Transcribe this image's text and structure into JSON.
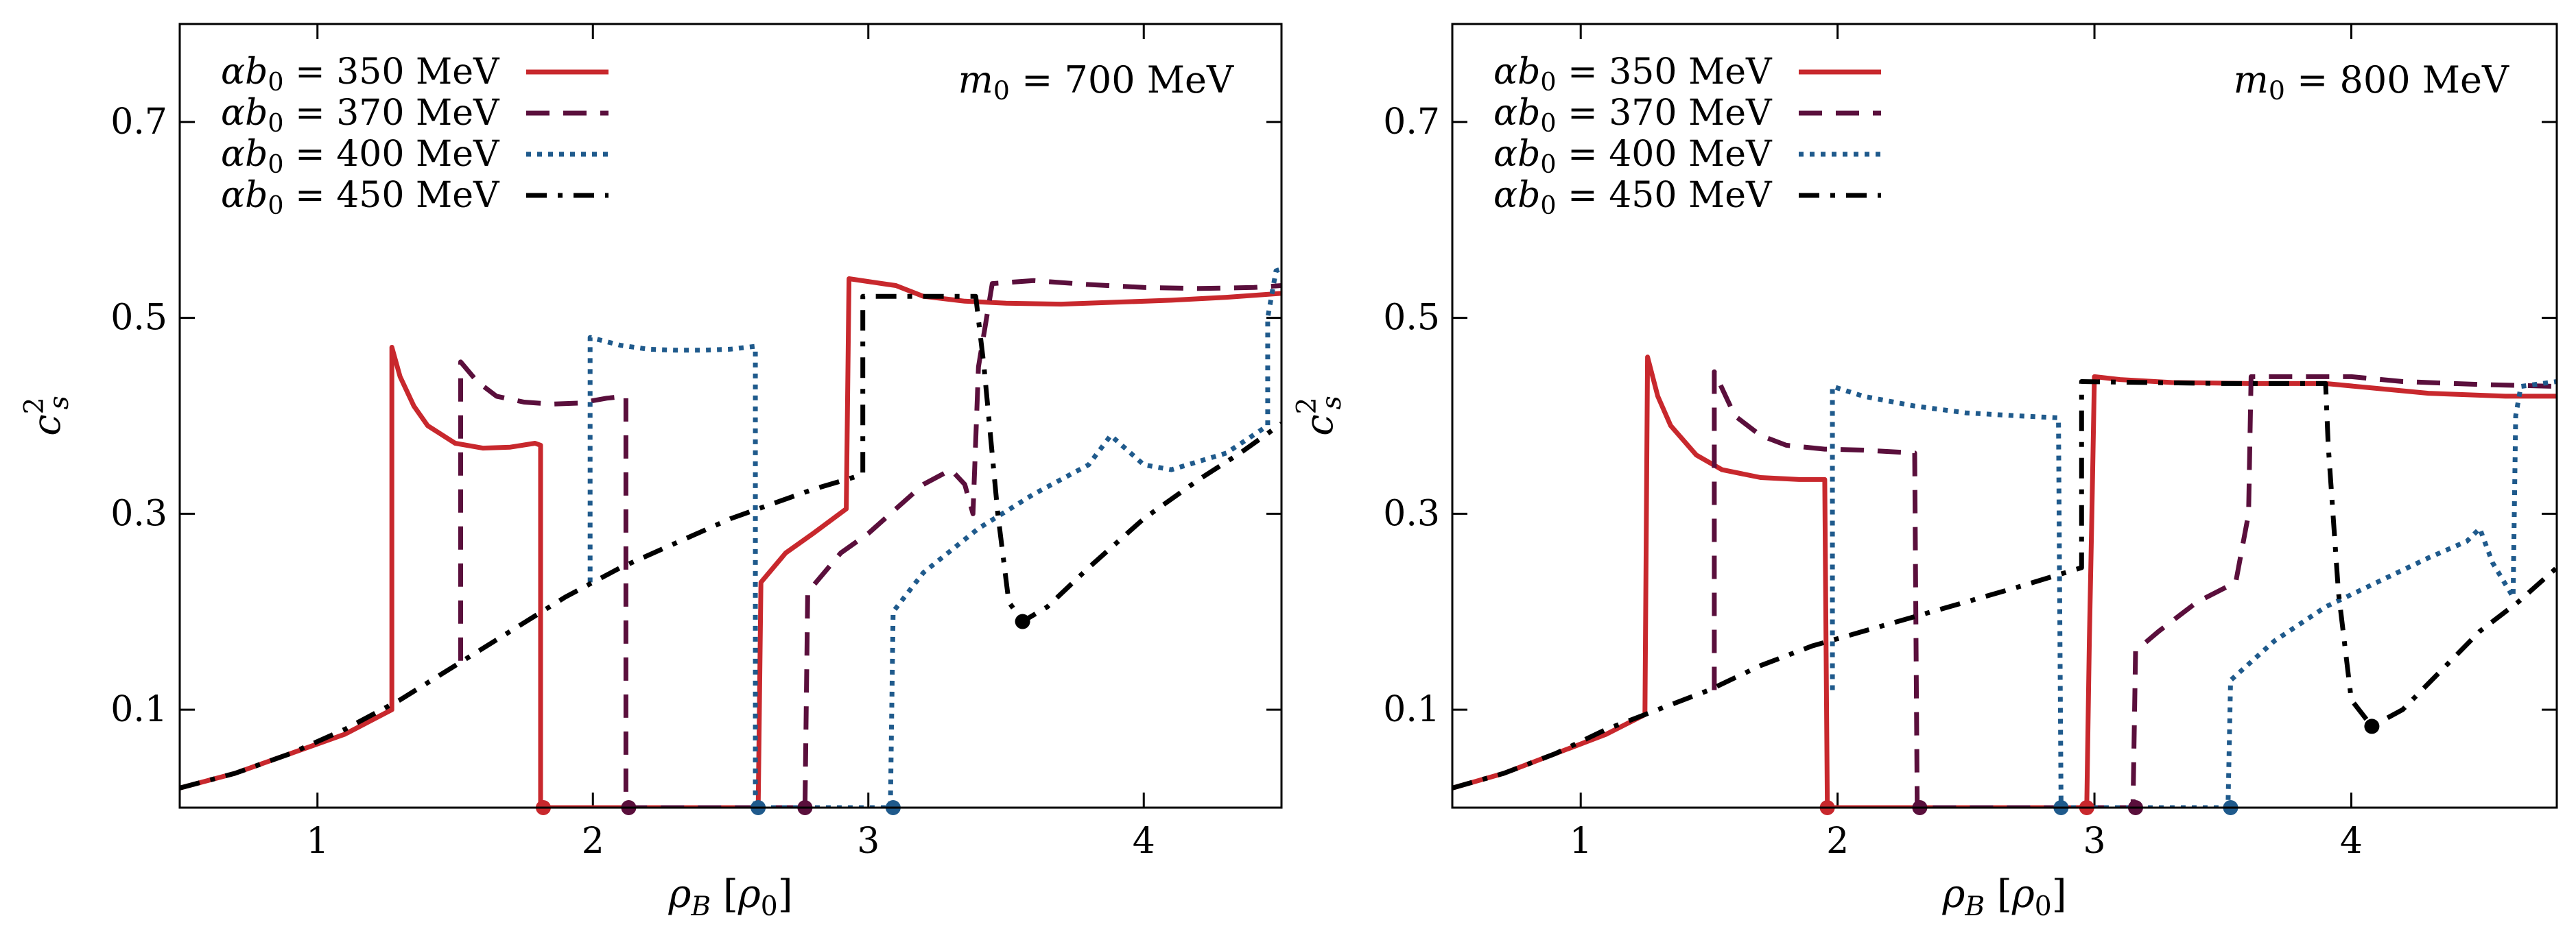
{
  "chart_data": [
    {
      "type": "line",
      "annotation": "m₀ = 700 MeV",
      "xlabel": "ρ_B [ρ₀]",
      "ylabel": "c_s^2",
      "xlim": [
        0.5,
        4.5
      ],
      "ylim": [
        0.0,
        0.8
      ],
      "xticks": [
        1,
        2,
        3,
        4
      ],
      "yticks": [
        0.1,
        0.3,
        0.5,
        0.7
      ],
      "legend_position": "top-left",
      "series": [
        {
          "name": "αb₀ = 350 MeV",
          "color": "#c8282d",
          "style": "solid",
          "points": [
            [
              0.5,
              0.02
            ],
            [
              0.7,
              0.035
            ],
            [
              0.9,
              0.055
            ],
            [
              1.1,
              0.075
            ],
            [
              1.27,
              0.1
            ],
            [
              1.27,
              0.47
            ],
            [
              1.3,
              0.44
            ],
            [
              1.35,
              0.41
            ],
            [
              1.4,
              0.39
            ],
            [
              1.5,
              0.372
            ],
            [
              1.6,
              0.367
            ],
            [
              1.7,
              0.368
            ],
            [
              1.79,
              0.372
            ],
            [
              1.81,
              0.37
            ],
            [
              1.81,
              0.0
            ],
            [
              2.6,
              0.0
            ],
            [
              2.61,
              0.23
            ],
            [
              2.7,
              0.26
            ],
            [
              2.8,
              0.28
            ],
            [
              2.92,
              0.305
            ],
            [
              2.93,
              0.54
            ],
            [
              3.05,
              0.535
            ],
            [
              3.1,
              0.533
            ],
            [
              3.2,
              0.522
            ],
            [
              3.35,
              0.517
            ],
            [
              3.5,
              0.515
            ],
            [
              3.7,
              0.514
            ],
            [
              3.9,
              0.516
            ],
            [
              4.1,
              0.518
            ],
            [
              4.3,
              0.521
            ],
            [
              4.5,
              0.525
            ]
          ]
        },
        {
          "name": "αb₀ = 370 MeV",
          "color": "#5a0f3c",
          "style": "dashed",
          "points": [
            [
              1.52,
              0.15
            ],
            [
              1.52,
              0.455
            ],
            [
              1.58,
              0.435
            ],
            [
              1.65,
              0.42
            ],
            [
              1.75,
              0.414
            ],
            [
              1.85,
              0.412
            ],
            [
              1.95,
              0.413
            ],
            [
              2.05,
              0.418
            ],
            [
              2.12,
              0.42
            ],
            [
              2.12,
              0.0
            ],
            [
              2.77,
              0.0
            ],
            [
              2.78,
              0.22
            ],
            [
              2.9,
              0.26
            ],
            [
              3.0,
              0.28
            ],
            [
              3.1,
              0.305
            ],
            [
              3.2,
              0.33
            ],
            [
              3.3,
              0.345
            ],
            [
              3.35,
              0.33
            ],
            [
              3.38,
              0.3
            ],
            [
              3.4,
              0.45
            ],
            [
              3.45,
              0.535
            ],
            [
              3.6,
              0.538
            ],
            [
              3.8,
              0.534
            ],
            [
              4.0,
              0.531
            ],
            [
              4.2,
              0.53
            ],
            [
              4.4,
              0.531
            ],
            [
              4.5,
              0.533
            ]
          ]
        },
        {
          "name": "αb₀ = 400 MeV",
          "color": "#1f5a8c",
          "style": "dotted",
          "points": [
            [
              1.99,
              0.23
            ],
            [
              1.99,
              0.48
            ],
            [
              2.1,
              0.472
            ],
            [
              2.2,
              0.468
            ],
            [
              2.3,
              0.467
            ],
            [
              2.4,
              0.467
            ],
            [
              2.5,
              0.468
            ],
            [
              2.59,
              0.471
            ],
            [
              2.59,
              0.0
            ],
            [
              3.08,
              0.0
            ],
            [
              3.09,
              0.2
            ],
            [
              3.2,
              0.24
            ],
            [
              3.4,
              0.285
            ],
            [
              3.6,
              0.32
            ],
            [
              3.8,
              0.35
            ],
            [
              3.88,
              0.38
            ],
            [
              3.92,
              0.37
            ],
            [
              4.0,
              0.35
            ],
            [
              4.1,
              0.345
            ],
            [
              4.3,
              0.362
            ],
            [
              4.45,
              0.39
            ],
            [
              4.45,
              0.5
            ],
            [
              4.48,
              0.548
            ],
            [
              4.5,
              0.55
            ]
          ]
        },
        {
          "name": "αb₀ = 450 MeV",
          "color": "#000000",
          "style": "dashdot",
          "points": [
            [
              0.5,
              0.02
            ],
            [
              0.7,
              0.035
            ],
            [
              0.9,
              0.055
            ],
            [
              1.1,
              0.08
            ],
            [
              1.3,
              0.11
            ],
            [
              1.5,
              0.145
            ],
            [
              1.7,
              0.18
            ],
            [
              1.9,
              0.215
            ],
            [
              2.1,
              0.245
            ],
            [
              2.3,
              0.27
            ],
            [
              2.5,
              0.295
            ],
            [
              2.7,
              0.315
            ],
            [
              2.8,
              0.325
            ],
            [
              2.98,
              0.34
            ],
            [
              2.98,
              0.522
            ],
            [
              3.2,
              0.522
            ],
            [
              3.39,
              0.522
            ],
            [
              3.42,
              0.45
            ],
            [
              3.47,
              0.3
            ],
            [
              3.51,
              0.21
            ],
            [
              3.56,
              0.19
            ],
            [
              3.65,
              0.205
            ],
            [
              3.8,
              0.245
            ],
            [
              4.0,
              0.295
            ],
            [
              4.2,
              0.335
            ],
            [
              4.35,
              0.362
            ],
            [
              4.5,
              0.392
            ]
          ]
        }
      ],
      "markers": [
        {
          "x": 1.82,
          "y": 0.0,
          "color": "#c8282d"
        },
        {
          "x": 2.13,
          "y": 0.0,
          "color": "#5a0f3c"
        },
        {
          "x": 2.6,
          "y": 0.0,
          "color": "#1f5a8c"
        },
        {
          "x": 2.77,
          "y": 0.0,
          "color": "#5a0f3c"
        },
        {
          "x": 3.09,
          "y": 0.0,
          "color": "#1f5a8c"
        },
        {
          "x": 3.56,
          "y": 0.19,
          "color": "#000000"
        }
      ]
    },
    {
      "type": "line",
      "annotation": "m₀ = 800 MeV",
      "xlabel": "ρ_B [ρ₀]",
      "ylabel": "c_s^2",
      "xlim": [
        0.5,
        4.8
      ],
      "ylim": [
        0.0,
        0.8
      ],
      "xticks": [
        1,
        2,
        3,
        4
      ],
      "yticks": [
        0.1,
        0.3,
        0.5,
        0.7
      ],
      "legend_position": "top-left",
      "series": [
        {
          "name": "αb₀ = 350 MeV",
          "color": "#c8282d",
          "style": "solid",
          "points": [
            [
              0.5,
              0.02
            ],
            [
              0.7,
              0.035
            ],
            [
              0.9,
              0.055
            ],
            [
              1.1,
              0.075
            ],
            [
              1.25,
              0.095
            ],
            [
              1.26,
              0.46
            ],
            [
              1.3,
              0.42
            ],
            [
              1.35,
              0.39
            ],
            [
              1.45,
              0.36
            ],
            [
              1.55,
              0.345
            ],
            [
              1.7,
              0.337
            ],
            [
              1.85,
              0.335
            ],
            [
              1.95,
              0.335
            ],
            [
              1.96,
              0.0
            ],
            [
              2.97,
              0.0
            ],
            [
              2.98,
              0.17
            ],
            [
              2.99,
              0.3
            ],
            [
              3.0,
              0.44
            ],
            [
              3.1,
              0.437
            ],
            [
              3.3,
              0.434
            ],
            [
              3.6,
              0.433
            ],
            [
              3.9,
              0.433
            ],
            [
              4.1,
              0.428
            ],
            [
              4.3,
              0.423
            ],
            [
              4.6,
              0.42
            ],
            [
              4.8,
              0.42
            ]
          ]
        },
        {
          "name": "αb₀ = 370 MeV",
          "color": "#5a0f3c",
          "style": "dashed",
          "points": [
            [
              1.52,
              0.12
            ],
            [
              1.52,
              0.445
            ],
            [
              1.6,
              0.4
            ],
            [
              1.7,
              0.38
            ],
            [
              1.8,
              0.37
            ],
            [
              1.95,
              0.366
            ],
            [
              2.1,
              0.365
            ],
            [
              2.3,
              0.362
            ],
            [
              2.31,
              0.0
            ],
            [
              3.15,
              0.0
            ],
            [
              3.16,
              0.16
            ],
            [
              3.25,
              0.18
            ],
            [
              3.4,
              0.21
            ],
            [
              3.55,
              0.23
            ],
            [
              3.6,
              0.3
            ],
            [
              3.61,
              0.44
            ],
            [
              3.8,
              0.44
            ],
            [
              4.0,
              0.44
            ],
            [
              4.2,
              0.435
            ],
            [
              4.5,
              0.432
            ],
            [
              4.8,
              0.43
            ]
          ]
        },
        {
          "name": "αb₀ = 400 MeV",
          "color": "#1f5a8c",
          "style": "dotted",
          "points": [
            [
              1.98,
              0.12
            ],
            [
              1.98,
              0.43
            ],
            [
              2.1,
              0.42
            ],
            [
              2.3,
              0.41
            ],
            [
              2.5,
              0.403
            ],
            [
              2.7,
              0.4
            ],
            [
              2.86,
              0.398
            ],
            [
              2.87,
              0.0
            ],
            [
              3.52,
              0.0
            ],
            [
              3.53,
              0.13
            ],
            [
              3.7,
              0.17
            ],
            [
              3.9,
              0.205
            ],
            [
              4.1,
              0.23
            ],
            [
              4.3,
              0.255
            ],
            [
              4.45,
              0.272
            ],
            [
              4.5,
              0.285
            ],
            [
              4.55,
              0.25
            ],
            [
              4.63,
              0.215
            ],
            [
              4.64,
              0.4
            ],
            [
              4.66,
              0.43
            ],
            [
              4.8,
              0.435
            ]
          ]
        },
        {
          "name": "αb₀ = 450 MeV",
          "color": "#000000",
          "style": "dashdot",
          "points": [
            [
              0.5,
              0.02
            ],
            [
              0.7,
              0.035
            ],
            [
              0.9,
              0.055
            ],
            [
              1.1,
              0.08
            ],
            [
              1.3,
              0.1
            ],
            [
              1.5,
              0.12
            ],
            [
              1.7,
              0.145
            ],
            [
              1.9,
              0.165
            ],
            [
              2.1,
              0.18
            ],
            [
              2.3,
              0.195
            ],
            [
              2.5,
              0.21
            ],
            [
              2.7,
              0.225
            ],
            [
              2.95,
              0.245
            ],
            [
              2.95,
              0.435
            ],
            [
              3.2,
              0.434
            ],
            [
              3.5,
              0.433
            ],
            [
              3.9,
              0.433
            ],
            [
              3.91,
              0.37
            ],
            [
              3.95,
              0.22
            ],
            [
              4.0,
              0.11
            ],
            [
              4.08,
              0.083
            ],
            [
              4.2,
              0.1
            ],
            [
              4.35,
              0.14
            ],
            [
              4.5,
              0.18
            ],
            [
              4.65,
              0.21
            ],
            [
              4.8,
              0.245
            ]
          ]
        }
      ],
      "markers": [
        {
          "x": 1.96,
          "y": 0.0,
          "color": "#c8282d"
        },
        {
          "x": 2.32,
          "y": 0.0,
          "color": "#5a0f3c"
        },
        {
          "x": 2.87,
          "y": 0.0,
          "color": "#1f5a8c"
        },
        {
          "x": 2.97,
          "y": 0.0,
          "color": "#c8282d"
        },
        {
          "x": 3.16,
          "y": 0.0,
          "color": "#5a0f3c"
        },
        {
          "x": 3.53,
          "y": 0.0,
          "color": "#1f5a8c"
        },
        {
          "x": 4.08,
          "y": 0.083,
          "color": "#000000"
        }
      ]
    }
  ]
}
